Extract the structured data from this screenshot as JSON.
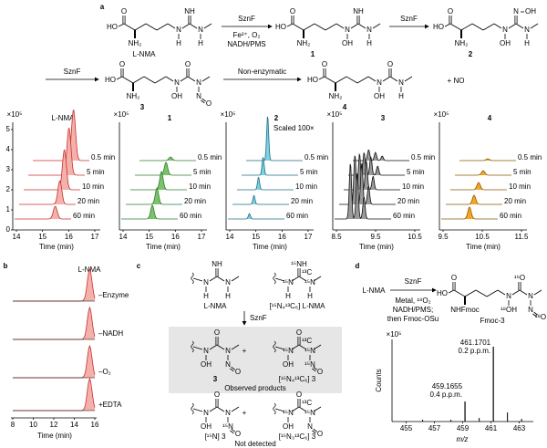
{
  "a": {
    "label": "a",
    "compounds": [
      {
        "name": "L-NMA",
        "atoms": {
          "acid_O": "O",
          "acid_OH": "HO",
          "amine": "NH₂",
          "n1": "N",
          "n1_sub": "H",
          "top": "NH",
          "n2": "N",
          "n2_sub": "H"
        }
      },
      {
        "name": "1",
        "atoms": {
          "acid_O": "O",
          "acid_OH": "HO",
          "amine": "NH₂",
          "n1": "N",
          "n1_sub": "OH",
          "top": "NH",
          "n2": "N",
          "n2_sub": "H"
        }
      },
      {
        "name": "2",
        "atoms": {
          "acid_O": "O",
          "acid_OH": "HO",
          "amine": "NH₂",
          "n1": "N",
          "n1_sub": "OH",
          "top": "N",
          "top_sub": "OH",
          "n2": "N",
          "n2_sub": "H"
        }
      },
      {
        "name": "3",
        "atoms": {
          "acid_O": "O",
          "acid_OH": "HO",
          "amine": "NH₂",
          "n1": "N",
          "n1_sub": "OH",
          "top": "O",
          "n2": "N",
          "n2_sub": "N",
          "n2_sub2": "O"
        }
      },
      {
        "name": "4",
        "atoms": {
          "acid_O": "O",
          "acid_OH": "HO",
          "amine": "NH₂",
          "n1": "N",
          "n1_sub": "OH",
          "top": "O",
          "n2": "N",
          "n2_sub": "H"
        }
      }
    ],
    "steps": [
      {
        "enzyme": "SznF",
        "conditions": [
          "Fe²⁺, O₂",
          "NADH/PMS"
        ]
      },
      {
        "enzyme": "SznF"
      },
      {
        "enzyme": "SznF"
      },
      {
        "enzyme": "Non-enzymatic"
      }
    ],
    "byproduct": "+ NO",
    "chromatograms": [
      {
        "title": "L-NMA",
        "scale": "×10⁵",
        "yticks": [
          0,
          1,
          2,
          3,
          4,
          5
        ],
        "xticks": [
          14,
          15,
          16,
          17
        ],
        "xlabel": "Time (min)",
        "traces": [
          "0.5 min",
          "5 min",
          "10 min",
          "20 min",
          "60 min"
        ]
      },
      {
        "title": "1",
        "scale": "×10⁵",
        "xticks": [
          14,
          15,
          16,
          17
        ],
        "xlabel": "Time (min)",
        "traces": [
          "0.5 min",
          "5 min",
          "10 min",
          "20 min",
          "60 min"
        ]
      },
      {
        "title": "2",
        "note": "Scaled 100×",
        "scale": "×10⁵",
        "xticks": [
          14,
          15,
          16,
          17
        ],
        "xlabel": "Time (min)",
        "traces": [
          "0.5 min",
          "5 min",
          "10 min",
          "20 min",
          "60 min"
        ]
      },
      {
        "title": "3",
        "scale": "×10⁵",
        "xticks": [
          8.5,
          9.5,
          10.5
        ],
        "xlabel": "Time (min)",
        "traces": [
          "0.5 min",
          "5 min",
          "10 min",
          "20 min",
          "60 min"
        ]
      },
      {
        "title": "4",
        "scale": "×10⁵",
        "xticks": [
          9.5,
          10.5,
          11.5
        ],
        "xlabel": "Time (min)",
        "traces": [
          "0.5 min",
          "5 min",
          "10 min",
          "20 min",
          "60 min"
        ]
      }
    ]
  },
  "b": {
    "label": "b",
    "title": "L-NMA",
    "traces": [
      "–Enzyme",
      "–NADH",
      "–O₂",
      "+EDTA"
    ],
    "xticks": [
      8,
      10,
      12,
      14,
      16
    ],
    "xlabel": "Time (min)"
  },
  "c": {
    "label": "c",
    "top": [
      {
        "name": "L-NMA",
        "atoms": {
          "n1": "N",
          "n1_sub": "H",
          "top": "NH",
          "n2": "N",
          "n2_sub": "H"
        }
      },
      {
        "name": "[¹⁵N₄¹³C₆] L-NMA",
        "atoms": {
          "n1": "¹⁵N",
          "n1_sub": "H",
          "top": "¹⁵NH",
          "c_mark": "¹³C",
          "n2": "¹⁵N",
          "n2_sub": "H"
        },
        "red": [
          "n1",
          "top",
          "c_mark",
          "n2"
        ]
      }
    ],
    "enzyme": "SznF",
    "observed": [
      {
        "name": "3",
        "atoms": {
          "n1": "N",
          "n1_sub": "OH",
          "top": "O",
          "n2": "N",
          "n2_sub": "N",
          "n2_sub2": "O"
        }
      },
      {
        "name": "[¹⁵N₄¹³C₆] 3",
        "atoms": {
          "n1": "¹⁵N",
          "n1_sub": "OH",
          "top": "O",
          "c_mark": "¹³C",
          "n2": "¹⁵N",
          "n2_sub": "¹⁵N",
          "n2_sub2": "O"
        },
        "red": [
          "n1",
          "c_mark",
          "n2",
          "n2_sub"
        ]
      }
    ],
    "observed_plus": "+",
    "observed_label": "Observed products",
    "not_detected": [
      {
        "name": "[¹⁵N] 3",
        "atoms": {
          "n1": "N",
          "n1_sub": "OH",
          "top": "O",
          "n2": "N",
          "n2_sub": "¹⁵N",
          "n2_sub2": "O"
        },
        "red": [
          "n2_sub"
        ]
      },
      {
        "name": "[¹⁵N₃¹³C₆] 3",
        "atoms": {
          "n1": "¹⁵N",
          "n1_sub": "OH",
          "top": "O",
          "c_mark": "¹³C",
          "n2": "¹⁵N",
          "n2_sub": "N",
          "n2_sub2": "O"
        },
        "red": [
          "n1",
          "c_mark",
          "n2"
        ]
      }
    ],
    "not_detected_plus": "+",
    "not_detected_label": "Not detected"
  },
  "d": {
    "label": "d",
    "reactant": "L-NMA",
    "enzyme": "SznF",
    "conditions": [
      "Metal, ¹⁸O₂",
      "NADH/PMS;",
      "then Fmoc-OSu"
    ],
    "product": {
      "name": "Fmoc-3",
      "atoms": {
        "acid_O": "O",
        "acid_OH": "HO",
        "amine": "NHFmoc",
        "n1": "N",
        "n1_sub": "¹⁸OH",
        "top": "¹⁶O",
        "n2": "N",
        "n2_sub": "N",
        "n2_sub2": "¹⁸O"
      },
      "red": [
        "n1_sub",
        "top",
        "n2_sub2"
      ]
    },
    "spectrum": {
      "scale": "×10⁵",
      "ylabel": "Counts",
      "xlabel": "m/z",
      "xticks": [
        455,
        457,
        459,
        461,
        463
      ],
      "peaks": [
        {
          "mz": 461.1701,
          "error": "0.2 p.p.m."
        },
        {
          "mz": 459.1655,
          "error": "0.4 p.p.m."
        }
      ]
    }
  }
}
